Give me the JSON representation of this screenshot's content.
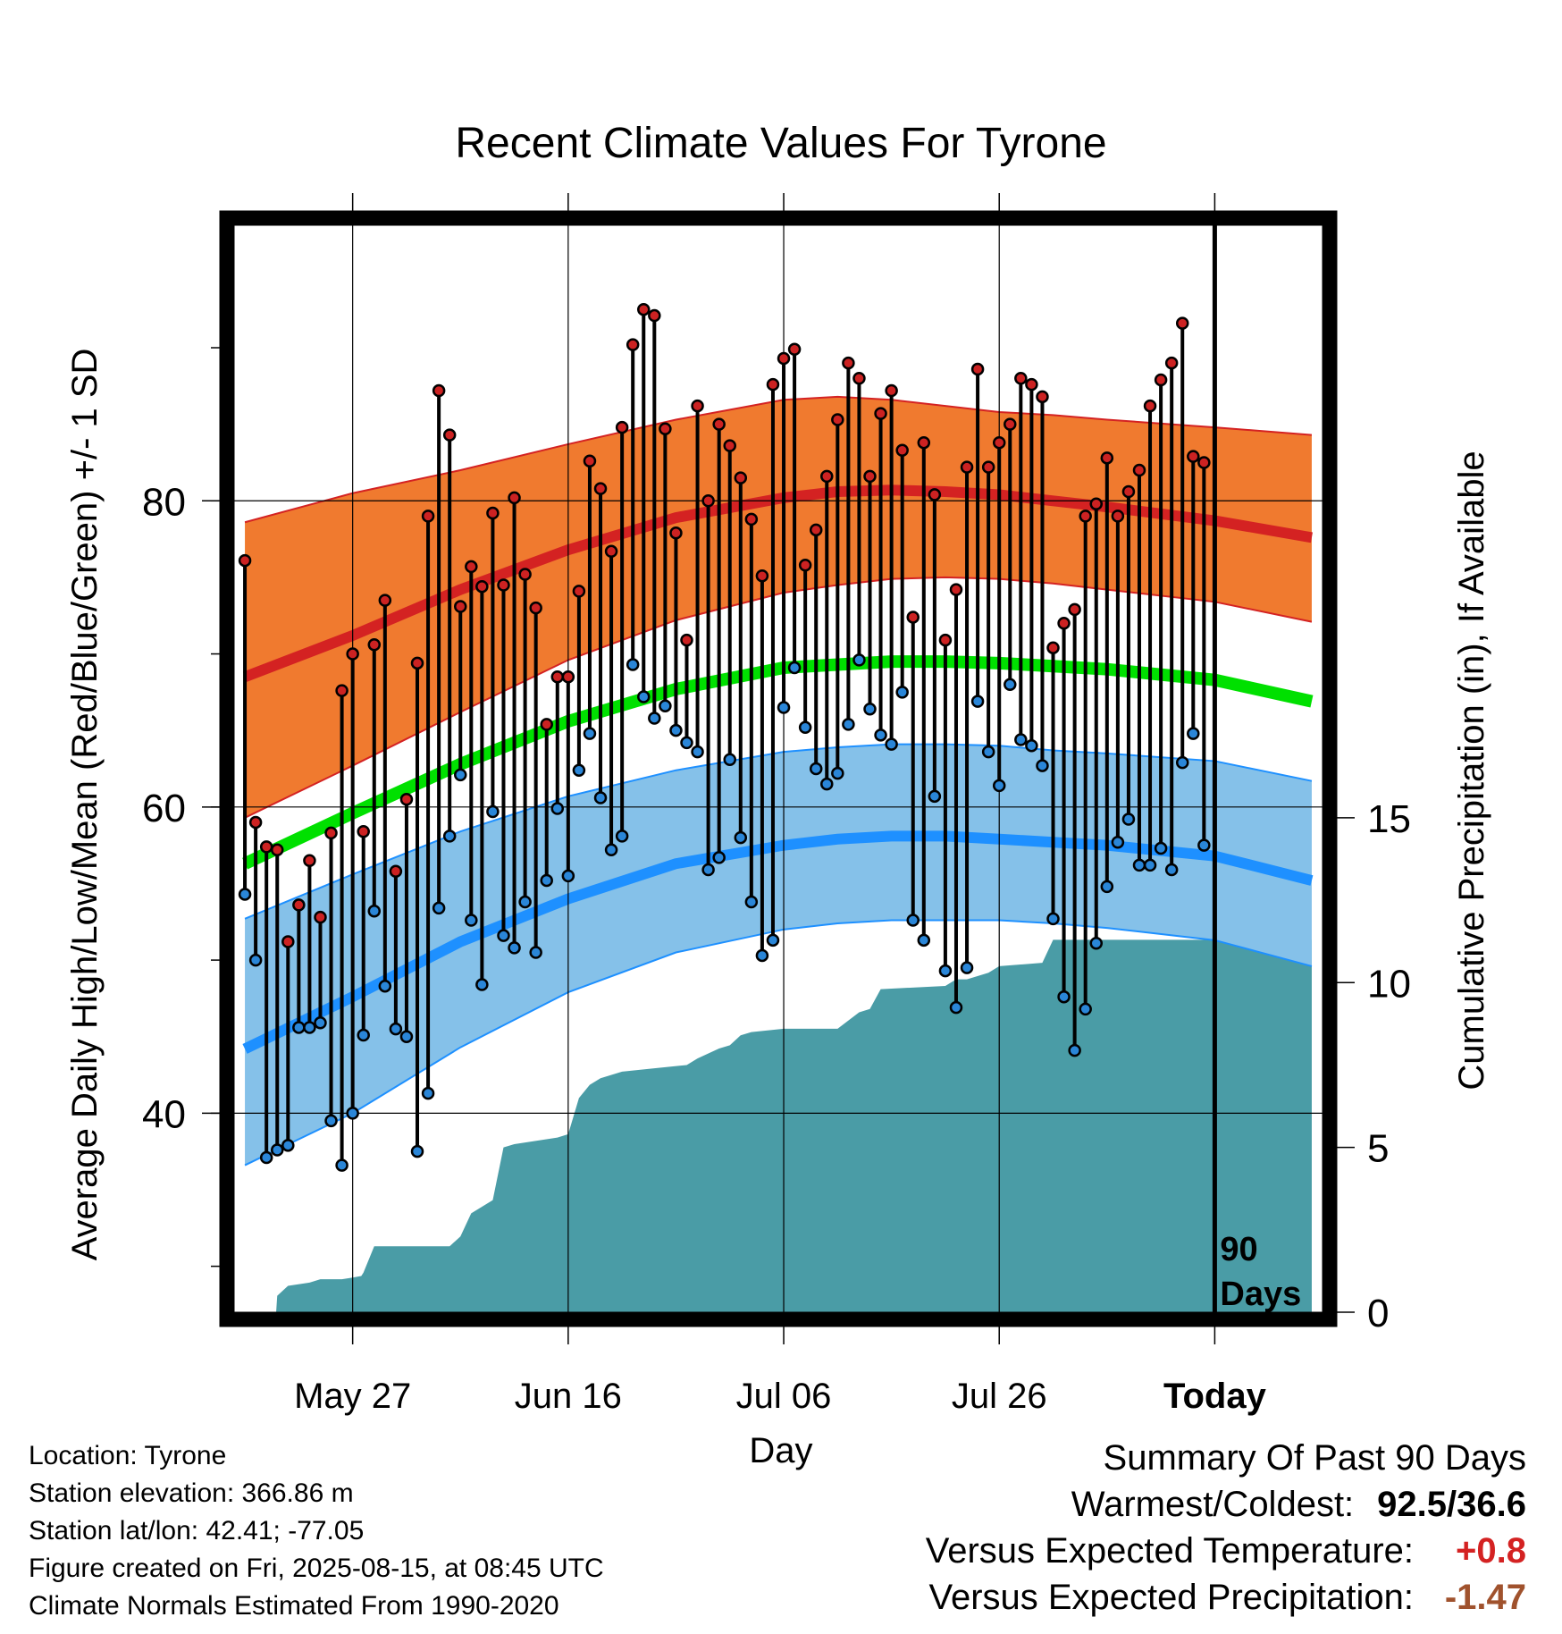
{
  "colors": {
    "high_band": "#f07a2f",
    "high_line": "#d42222",
    "low_band": "#85c1e9",
    "low_line": "#1e90ff",
    "mean_line": "#00e000",
    "precip": "#4a9ca6",
    "hi_dot": "#cc2222",
    "lo_dot": "#2a86d8",
    "temp_positive": "#d42222",
    "precip_negative": "#a0522d"
  },
  "chart_data": {
    "type": "line",
    "title": "Recent Climate Values For Tyrone",
    "xlabel": "Day",
    "ylabel": "Average Daily High/Low/Mean (Red/Blue/Green) +/- 1 SD",
    "y2label": "Cumulative Precipitation (in), If Available",
    "x_ticklabels": [
      "May 27",
      "Jun 16",
      "Jul 06",
      "Jul 26",
      "Today"
    ],
    "x_tick_days": [
      10,
      30,
      50,
      70,
      90
    ],
    "y_ticks": [
      40,
      60,
      80
    ],
    "y_minor_ticks": [
      30,
      40,
      50,
      60,
      70,
      80,
      90
    ],
    "ylim": [
      27,
      98
    ],
    "y2_ticks": [
      0,
      5,
      10,
      15
    ],
    "y2lim": [
      0,
      15.5
    ],
    "xlim": [
      -1,
      100
    ],
    "grid": true,
    "today_marker_label": "90 Days",
    "normals": {
      "day": [
        0,
        10,
        20,
        30,
        40,
        50,
        55,
        60,
        65,
        70,
        75,
        80,
        90,
        99
      ],
      "high_mean": [
        68.5,
        71.2,
        74.2,
        76.8,
        78.9,
        80.2,
        80.6,
        80.7,
        80.6,
        80.4,
        80.0,
        79.6,
        78.7,
        77.6
      ],
      "high_upper": [
        78.6,
        80.5,
        82.0,
        83.7,
        85.3,
        86.6,
        86.8,
        86.6,
        86.2,
        85.8,
        85.6,
        85.3,
        84.8,
        84.3
      ],
      "high_lower": [
        59.3,
        62.7,
        66.2,
        69.6,
        72.2,
        74.0,
        74.5,
        74.9,
        75.0,
        74.9,
        74.6,
        74.2,
        73.4,
        72.1
      ],
      "mean": [
        56.3,
        59.6,
        62.8,
        65.6,
        67.7,
        69.1,
        69.3,
        69.5,
        69.5,
        69.4,
        69.2,
        69.0,
        68.3,
        66.9
      ],
      "low_mean": [
        44.2,
        47.6,
        51.2,
        54.0,
        56.3,
        57.5,
        57.9,
        58.1,
        58.1,
        57.9,
        57.7,
        57.5,
        56.8,
        55.2
      ],
      "low_upper": [
        52.7,
        55.6,
        58.4,
        60.7,
        62.4,
        63.6,
        63.9,
        64.1,
        64.1,
        64.0,
        63.7,
        63.5,
        63.0,
        61.7
      ],
      "low_lower": [
        36.6,
        40.0,
        44.3,
        47.9,
        50.5,
        52.0,
        52.4,
        52.6,
        52.6,
        52.6,
        52.4,
        52.1,
        51.3,
        49.6
      ]
    },
    "daily_high": [
      76.1,
      59.0,
      57.4,
      57.2,
      51.2,
      53.6,
      56.5,
      52.8,
      58.3,
      67.6,
      70.0,
      58.4,
      70.6,
      73.5,
      55.8,
      60.5,
      69.4,
      79.0,
      87.2,
      84.3,
      73.1,
      75.7,
      74.4,
      79.2,
      74.5,
      80.2,
      75.2,
      73.0,
      65.4,
      68.5,
      68.5,
      74.1,
      82.6,
      80.8,
      76.7,
      84.8,
      90.2,
      92.5,
      92.1,
      84.7,
      77.9,
      70.9,
      86.2,
      80.0,
      85.0,
      83.6,
      81.5,
      78.8,
      75.1,
      87.6,
      89.3,
      89.9,
      75.8,
      78.1,
      81.6,
      85.3,
      89.0,
      88.0,
      81.6,
      85.7,
      87.2,
      83.3,
      72.4,
      83.8,
      80.4,
      70.9,
      74.2,
      82.2,
      88.6,
      82.2,
      83.8,
      85.0,
      88.0,
      87.6,
      86.8,
      70.4,
      72.0,
      72.9,
      79.0,
      79.8,
      82.8,
      79.0,
      80.6,
      82.0,
      86.2,
      87.9,
      89.0,
      91.6,
      82.9,
      82.5
    ],
    "daily_low": [
      54.3,
      50.0,
      37.1,
      37.6,
      37.9,
      45.6,
      45.6,
      45.9,
      39.5,
      36.6,
      40.0,
      45.1,
      53.2,
      48.3,
      45.5,
      45.0,
      37.5,
      41.3,
      53.4,
      58.1,
      62.1,
      52.6,
      48.4,
      59.7,
      51.6,
      50.8,
      53.8,
      50.5,
      55.2,
      59.9,
      55.5,
      62.4,
      64.8,
      60.6,
      57.2,
      58.1,
      69.3,
      67.2,
      65.8,
      66.6,
      65.0,
      64.2,
      63.6,
      55.9,
      56.7,
      63.1,
      58.0,
      53.8,
      50.3,
      51.3,
      66.5,
      69.1,
      65.2,
      62.5,
      61.5,
      62.2,
      65.4,
      69.6,
      66.4,
      64.7,
      64.1,
      67.5,
      52.6,
      51.3,
      60.7,
      49.3,
      46.9,
      49.5,
      66.9,
      63.6,
      61.4,
      68.0,
      64.4,
      64.0,
      62.7,
      52.7,
      47.6,
      44.1,
      46.8,
      51.1,
      54.8,
      57.7,
      59.2,
      56.2,
      56.2,
      57.3,
      55.9,
      62.9,
      64.8,
      57.5
    ],
    "cumulative_precip": {
      "day": [
        0,
        2.9,
        3.0,
        4,
        6,
        7,
        9,
        10,
        10.8,
        11,
        12,
        15,
        18,
        19,
        20,
        21,
        22,
        23,
        24,
        25,
        29,
        30,
        31,
        32,
        33,
        35,
        38,
        41,
        42,
        44,
        45,
        46,
        47,
        50,
        55,
        57,
        58,
        59,
        65,
        66,
        67,
        69,
        70,
        74,
        75,
        90,
        99
      ],
      "value": [
        0,
        0,
        0.5,
        0.8,
        0.9,
        1.0,
        1.0,
        1.05,
        1.1,
        1.2,
        2.0,
        2.0,
        2.0,
        2.0,
        2.3,
        3.0,
        3.2,
        3.4,
        5.0,
        5.1,
        5.3,
        5.4,
        6.5,
        6.9,
        7.1,
        7.3,
        7.4,
        7.5,
        7.7,
        8.0,
        8.1,
        8.4,
        8.5,
        8.6,
        8.6,
        9.1,
        9.2,
        9.8,
        9.9,
        10.1,
        10.1,
        10.3,
        10.5,
        10.6,
        11.3,
        11.3,
        11.3
      ]
    }
  },
  "info": {
    "location": "Location: Tyrone",
    "elevation": "Station elevation: 366.86 m",
    "latlon": "Station lat/lon: 42.41; -77.05",
    "created": "Figure created on Fri, 2025-08-15, at 08:45 UTC",
    "normals_note": "Climate Normals Estimated From 1990-2020"
  },
  "summary": {
    "title": "Summary Of Past 90 Days",
    "warm_cold_label": "Warmest/Coldest:",
    "warm_cold_value": "92.5/36.6",
    "temp_label": "Versus Expected Temperature:",
    "temp_value": "+0.8",
    "precip_label": "Versus Expected Precipitation:",
    "precip_value": "-1.47"
  }
}
